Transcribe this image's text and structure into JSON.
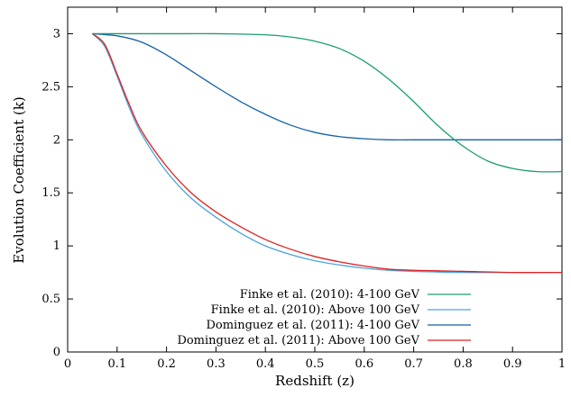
{
  "chart_data": {
    "type": "line",
    "title": "",
    "xlabel": "Redshift (z)",
    "ylabel": "Evolution Coefficient (k)",
    "xlim": [
      0,
      1
    ],
    "ylim": [
      0,
      3.25
    ],
    "xticks": [
      "0",
      "0.1",
      "0.2",
      "0.3",
      "0.4",
      "0.5",
      "0.6",
      "0.7",
      "0.8",
      "0.9",
      "1"
    ],
    "yticks": [
      "0",
      "0.5",
      "1",
      "1.5",
      "2",
      "2.5",
      "3"
    ],
    "grid": false,
    "legend_position": "bottom-center",
    "series": [
      {
        "name": "Finke et al. (2010): 4-100 GeV",
        "color": "#1a9e6e",
        "x": [
          0.05,
          0.1,
          0.2,
          0.3,
          0.4,
          0.45,
          0.5,
          0.55,
          0.6,
          0.65,
          0.7,
          0.75,
          0.8,
          0.85,
          0.9,
          0.95,
          1.0
        ],
        "y": [
          3.0,
          3.0,
          3.0,
          3.0,
          2.99,
          2.97,
          2.93,
          2.86,
          2.74,
          2.57,
          2.36,
          2.13,
          1.94,
          1.8,
          1.73,
          1.7,
          1.7
        ]
      },
      {
        "name": "Finke et al. (2010): Above 100 GeV",
        "color": "#4aa3e0",
        "x": [
          0.05,
          0.075,
          0.1,
          0.125,
          0.15,
          0.2,
          0.25,
          0.3,
          0.35,
          0.4,
          0.45,
          0.5,
          0.55,
          0.6,
          0.65,
          0.7,
          0.8,
          0.9,
          1.0
        ],
        "y": [
          3.0,
          2.88,
          2.6,
          2.3,
          2.05,
          1.7,
          1.45,
          1.27,
          1.12,
          1.0,
          0.92,
          0.86,
          0.82,
          0.79,
          0.77,
          0.76,
          0.75,
          0.75,
          0.75
        ]
      },
      {
        "name": "Dominguez et al. (2011): 4-100 GeV",
        "color": "#1560a8",
        "x": [
          0.05,
          0.1,
          0.15,
          0.2,
          0.25,
          0.3,
          0.35,
          0.4,
          0.45,
          0.5,
          0.55,
          0.6,
          0.65,
          0.7,
          0.8,
          0.9,
          1.0
        ],
        "y": [
          3.0,
          2.98,
          2.92,
          2.8,
          2.65,
          2.5,
          2.36,
          2.24,
          2.14,
          2.07,
          2.03,
          2.01,
          2.0,
          2.0,
          2.0,
          2.0,
          2.0
        ]
      },
      {
        "name": "Dominguez et al. (2011): Above 100 GeV",
        "color": "#e02020",
        "x": [
          0.05,
          0.075,
          0.1,
          0.125,
          0.15,
          0.2,
          0.25,
          0.3,
          0.35,
          0.4,
          0.45,
          0.5,
          0.55,
          0.6,
          0.65,
          0.7,
          0.8,
          0.9,
          1.0
        ],
        "y": [
          3.0,
          2.9,
          2.62,
          2.33,
          2.08,
          1.75,
          1.5,
          1.32,
          1.18,
          1.06,
          0.97,
          0.9,
          0.85,
          0.81,
          0.78,
          0.77,
          0.76,
          0.75,
          0.75
        ]
      }
    ]
  }
}
